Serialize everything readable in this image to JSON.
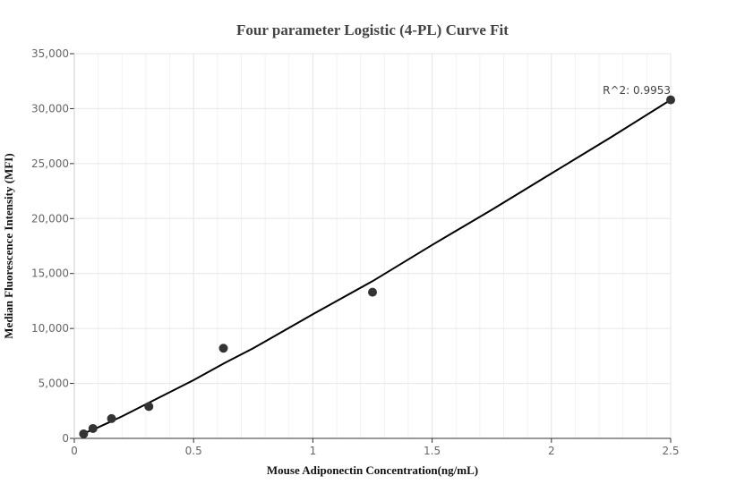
{
  "chart_data": {
    "type": "scatter",
    "title": "Four parameter Logistic (4-PL) Curve Fit",
    "xlabel": "Mouse Adiponectin Concentration(ng/mL)",
    "ylabel": "Median Fluorescence Intensity (MFI)",
    "xlim": [
      0,
      2.5
    ],
    "ylim": [
      0,
      35000
    ],
    "x_ticks": [
      0,
      0.5,
      1,
      1.5,
      2,
      2.5
    ],
    "x_tick_labels": [
      "0",
      "0.5",
      "1",
      "1.5",
      "2",
      "2.5"
    ],
    "y_ticks": [
      0,
      5000,
      10000,
      15000,
      20000,
      25000,
      30000,
      35000
    ],
    "y_tick_labels": [
      "0",
      "5,000",
      "10,000",
      "15,000",
      "20,000",
      "25,000",
      "30,000",
      "35,000"
    ],
    "grid": true,
    "points": {
      "x": [
        0.039,
        0.078,
        0.156,
        0.3125,
        0.625,
        1.25,
        2.5
      ],
      "y": [
        410,
        900,
        1800,
        2900,
        8200,
        13300,
        30800
      ]
    },
    "fit_curve": {
      "x": [
        0.039,
        0.1,
        0.2,
        0.3,
        0.5,
        0.625,
        0.75,
        1.0,
        1.25,
        1.5,
        1.75,
        2.0,
        2.25,
        2.5
      ],
      "y": [
        450,
        1000,
        2000,
        3100,
        5300,
        6800,
        8200,
        11300,
        14300,
        17600,
        20800,
        24100,
        27400,
        30800
      ]
    },
    "annotation": "R^2: 0.9953",
    "colors": {
      "points": "#333333",
      "curve": "#000000",
      "grid": "#e6e6e6"
    }
  }
}
